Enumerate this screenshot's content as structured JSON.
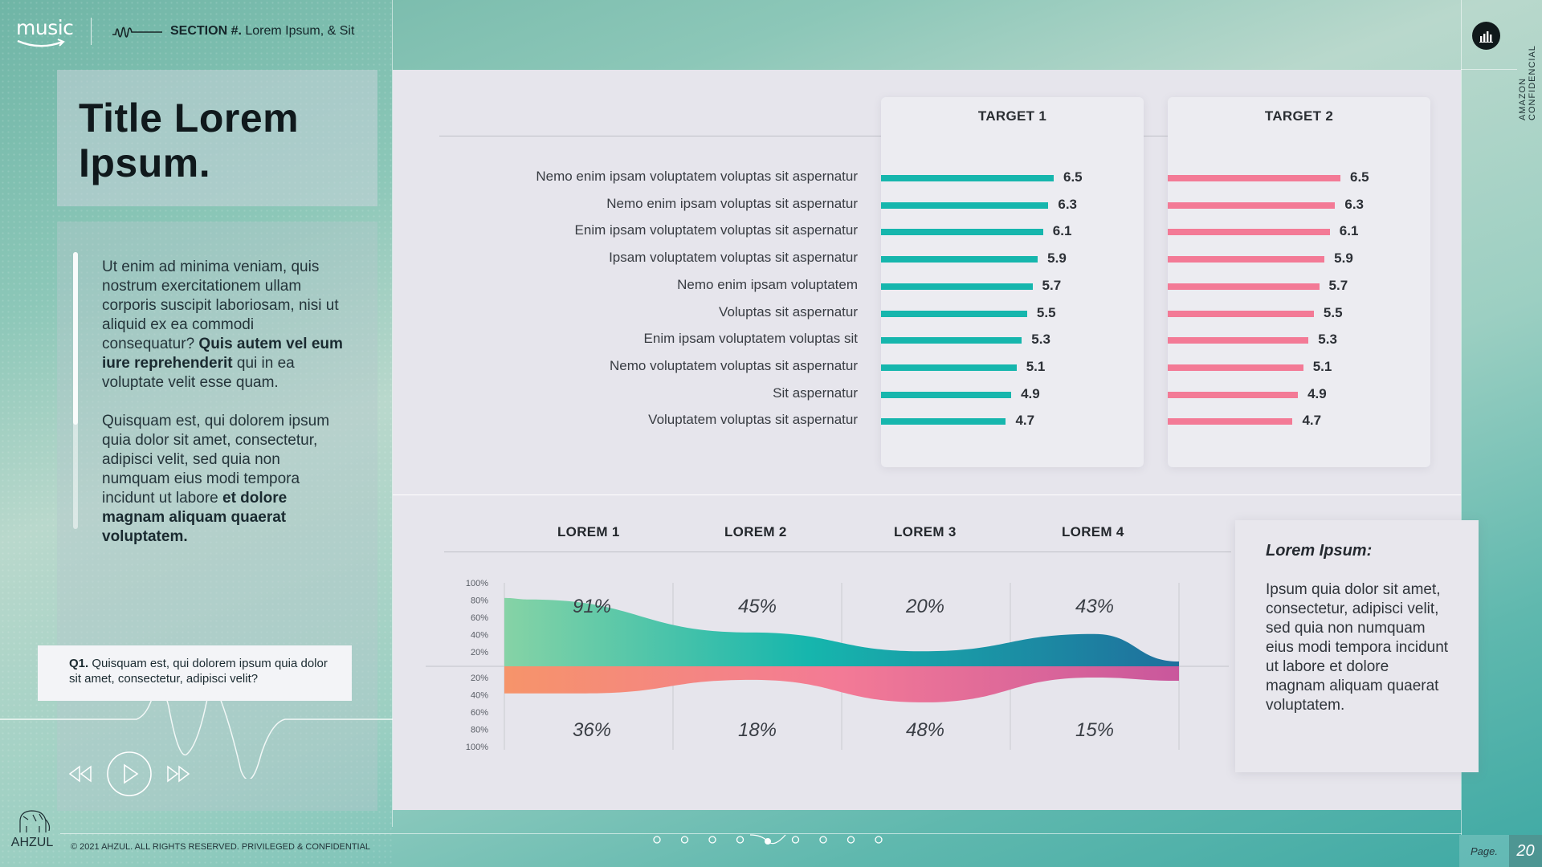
{
  "header": {
    "logo_text": "music",
    "section_prefix": "SECTION #.",
    "section_text": "Lorem Ipsum, & Sit",
    "confidential": "AMAZON CONFIDENCIAL"
  },
  "sidebar": {
    "title": "Title Lorem Ipsum.",
    "para1_a": "Ut enim ad minima veniam, quis nostrum exercitationem ullam corporis suscipit laboriosam, nisi ut aliquid ex ea commodi consequatur? ",
    "para1_b": "Quis autem vel eum iure reprehenderit",
    "para1_c": " qui in ea voluptate velit esse quam.",
    "para2_a": "Quisquam est, qui dolorem ipsum quia dolor sit amet, consectetur, adipisci velit, sed quia non numquam eius modi tempora incidunt ut labore ",
    "para2_b": "et dolore magnam aliquam quaerat voluptatem.",
    "question_label": "Q1.",
    "question_text": " Quisquam est, qui dolorem ipsum quia dolor sit amet, consectetur, adipisci velit?"
  },
  "footer": {
    "brand": "AHZUL",
    "copyright": "© 2021 AHZUL. ALL RIGHTS RESERVED. PRIVILEGED & CONFIDENTIAL",
    "page_label": "Page.",
    "page_number": "20",
    "dots_total": 9,
    "dots_active": 5
  },
  "note": {
    "title": "Lorem Ipsum:",
    "body": "Ipsum quia dolor sit amet, consectetur, adipisci velit, sed quia non numquam eius modi tempora incidunt ut labore et dolore magnam aliquam quaerat voluptatem."
  },
  "colors": {
    "teal": "#16b6ad",
    "pink": "#f37a96",
    "green_light": "#86d3a6",
    "blue_dark": "#1f6f9d",
    "orange": "#f6946a",
    "magenta": "#c9579c"
  },
  "chart_data": [
    {
      "type": "bar",
      "orientation": "horizontal",
      "categories": [
        "Nemo enim ipsam voluptatem voluptas sit aspernatur",
        "Nemo enim ipsam voluptas sit aspernatur",
        "Enim ipsam voluptatem voluptas sit aspernatur",
        "Ipsam voluptatem voluptas sit aspernatur",
        "Nemo enim ipsam voluptatem",
        "Voluptas sit aspernatur",
        "Enim ipsam voluptatem voluptas sit",
        "Nemo voluptatem voluptas sit aspernatur",
        "Sit aspernatur",
        "Voluptatem voluptas sit aspernatur"
      ],
      "series": [
        {
          "name": "TARGET 1",
          "color": "#16b6ad",
          "values": [
            6.5,
            6.3,
            6.1,
            5.9,
            5.7,
            5.5,
            5.3,
            5.1,
            4.9,
            4.7
          ]
        },
        {
          "name": "TARGET 2",
          "color": "#f37a96",
          "values": [
            6.5,
            6.3,
            6.1,
            5.9,
            5.7,
            5.5,
            5.3,
            5.1,
            4.9,
            4.7
          ]
        }
      ],
      "xlim": [
        0,
        6.5
      ]
    },
    {
      "type": "area",
      "categories": [
        "LOREM 1",
        "LOREM 2",
        "LOREM 3",
        "LOREM 4"
      ],
      "series": [
        {
          "direction": "up",
          "values": [
            91,
            45,
            20,
            43
          ],
          "labels": [
            "91%",
            "45%",
            "20%",
            "43%"
          ]
        },
        {
          "direction": "down",
          "values": [
            36,
            18,
            48,
            15
          ],
          "labels": [
            "36%",
            "18%",
            "48%",
            "15%"
          ]
        }
      ],
      "y_ticks_up": [
        "100%",
        "80%",
        "60%",
        "40%",
        "20%"
      ],
      "y_ticks_down": [
        "20%",
        "40%",
        "60%",
        "80%",
        "100%"
      ],
      "ylim": [
        0,
        100
      ]
    }
  ]
}
